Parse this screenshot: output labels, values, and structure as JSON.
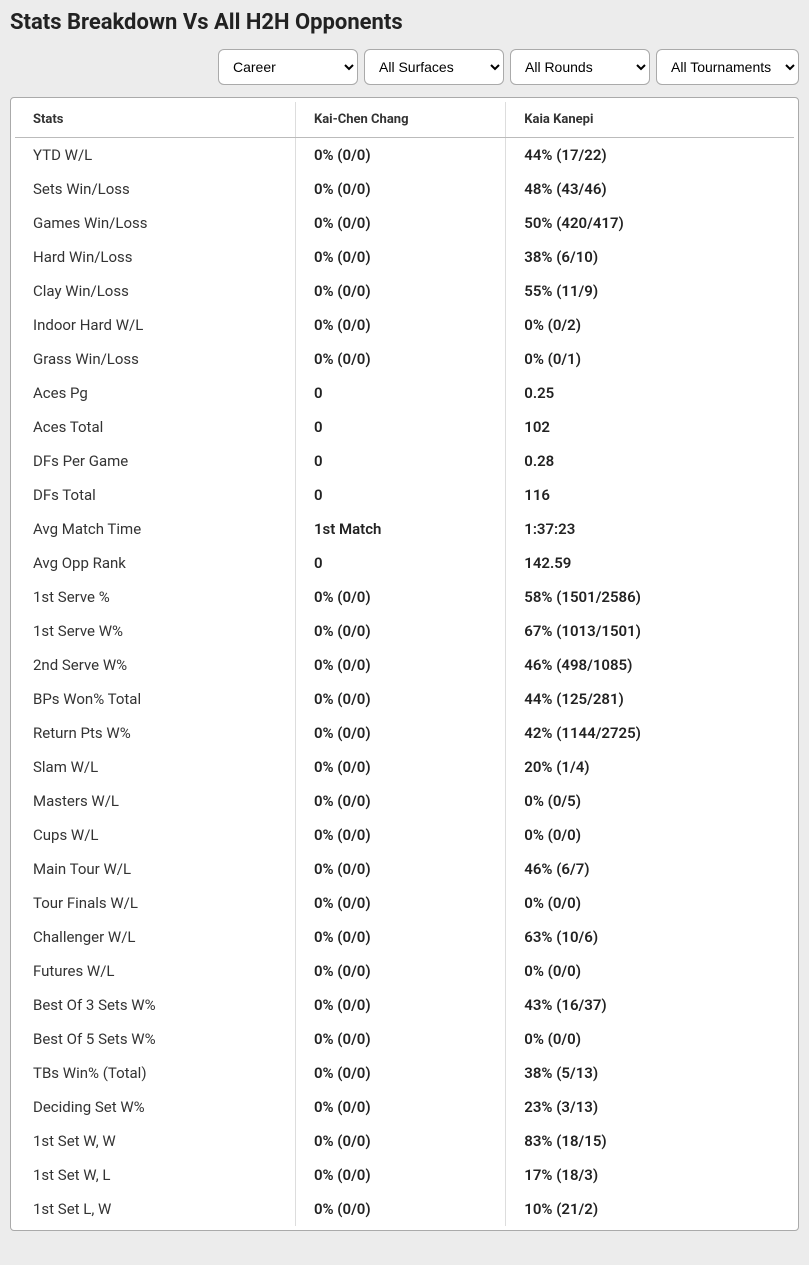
{
  "title": "Stats Breakdown Vs All H2H Opponents",
  "filters": {
    "period": "Career",
    "surface": "All Surfaces",
    "round": "All Rounds",
    "tournament": "All Tournaments"
  },
  "table": {
    "columns": [
      "Stats",
      "Kai-Chen Chang",
      "Kaia Kanepi"
    ],
    "rows": [
      [
        "YTD W/L",
        "0% (0/0)",
        "44% (17/22)"
      ],
      [
        "Sets Win/Loss",
        "0% (0/0)",
        "48% (43/46)"
      ],
      [
        "Games Win/Loss",
        "0% (0/0)",
        "50% (420/417)"
      ],
      [
        "Hard Win/Loss",
        "0% (0/0)",
        "38% (6/10)"
      ],
      [
        "Clay Win/Loss",
        "0% (0/0)",
        "55% (11/9)"
      ],
      [
        "Indoor Hard W/L",
        "0% (0/0)",
        "0% (0/2)"
      ],
      [
        "Grass Win/Loss",
        "0% (0/0)",
        "0% (0/1)"
      ],
      [
        "Aces Pg",
        "0",
        "0.25"
      ],
      [
        "Aces Total",
        "0",
        "102"
      ],
      [
        "DFs Per Game",
        "0",
        "0.28"
      ],
      [
        "DFs Total",
        "0",
        "116"
      ],
      [
        "Avg Match Time",
        "1st Match",
        "1:37:23"
      ],
      [
        "Avg Opp Rank",
        "0",
        "142.59"
      ],
      [
        "1st Serve %",
        "0% (0/0)",
        "58% (1501/2586)"
      ],
      [
        "1st Serve W%",
        "0% (0/0)",
        "67% (1013/1501)"
      ],
      [
        "2nd Serve W%",
        "0% (0/0)",
        "46% (498/1085)"
      ],
      [
        "BPs Won% Total",
        "0% (0/0)",
        "44% (125/281)"
      ],
      [
        "Return Pts W%",
        "0% (0/0)",
        "42% (1144/2725)"
      ],
      [
        "Slam W/L",
        "0% (0/0)",
        "20% (1/4)"
      ],
      [
        "Masters W/L",
        "0% (0/0)",
        "0% (0/5)"
      ],
      [
        "Cups W/L",
        "0% (0/0)",
        "0% (0/0)"
      ],
      [
        "Main Tour W/L",
        "0% (0/0)",
        "46% (6/7)"
      ],
      [
        "Tour Finals W/L",
        "0% (0/0)",
        "0% (0/0)"
      ],
      [
        "Challenger W/L",
        "0% (0/0)",
        "63% (10/6)"
      ],
      [
        "Futures W/L",
        "0% (0/0)",
        "0% (0/0)"
      ],
      [
        "Best Of 3 Sets W%",
        "0% (0/0)",
        "43% (16/37)"
      ],
      [
        "Best Of 5 Sets W%",
        "0% (0/0)",
        "0% (0/0)"
      ],
      [
        "TBs Win% (Total)",
        "0% (0/0)",
        "38% (5/13)"
      ],
      [
        "Deciding Set W%",
        "0% (0/0)",
        "23% (3/13)"
      ],
      [
        "1st Set W, W",
        "0% (0/0)",
        "83% (18/15)"
      ],
      [
        "1st Set W, L",
        "0% (0/0)",
        "17% (18/3)"
      ],
      [
        "1st Set L, W",
        "0% (0/0)",
        "10% (21/2)"
      ]
    ]
  }
}
